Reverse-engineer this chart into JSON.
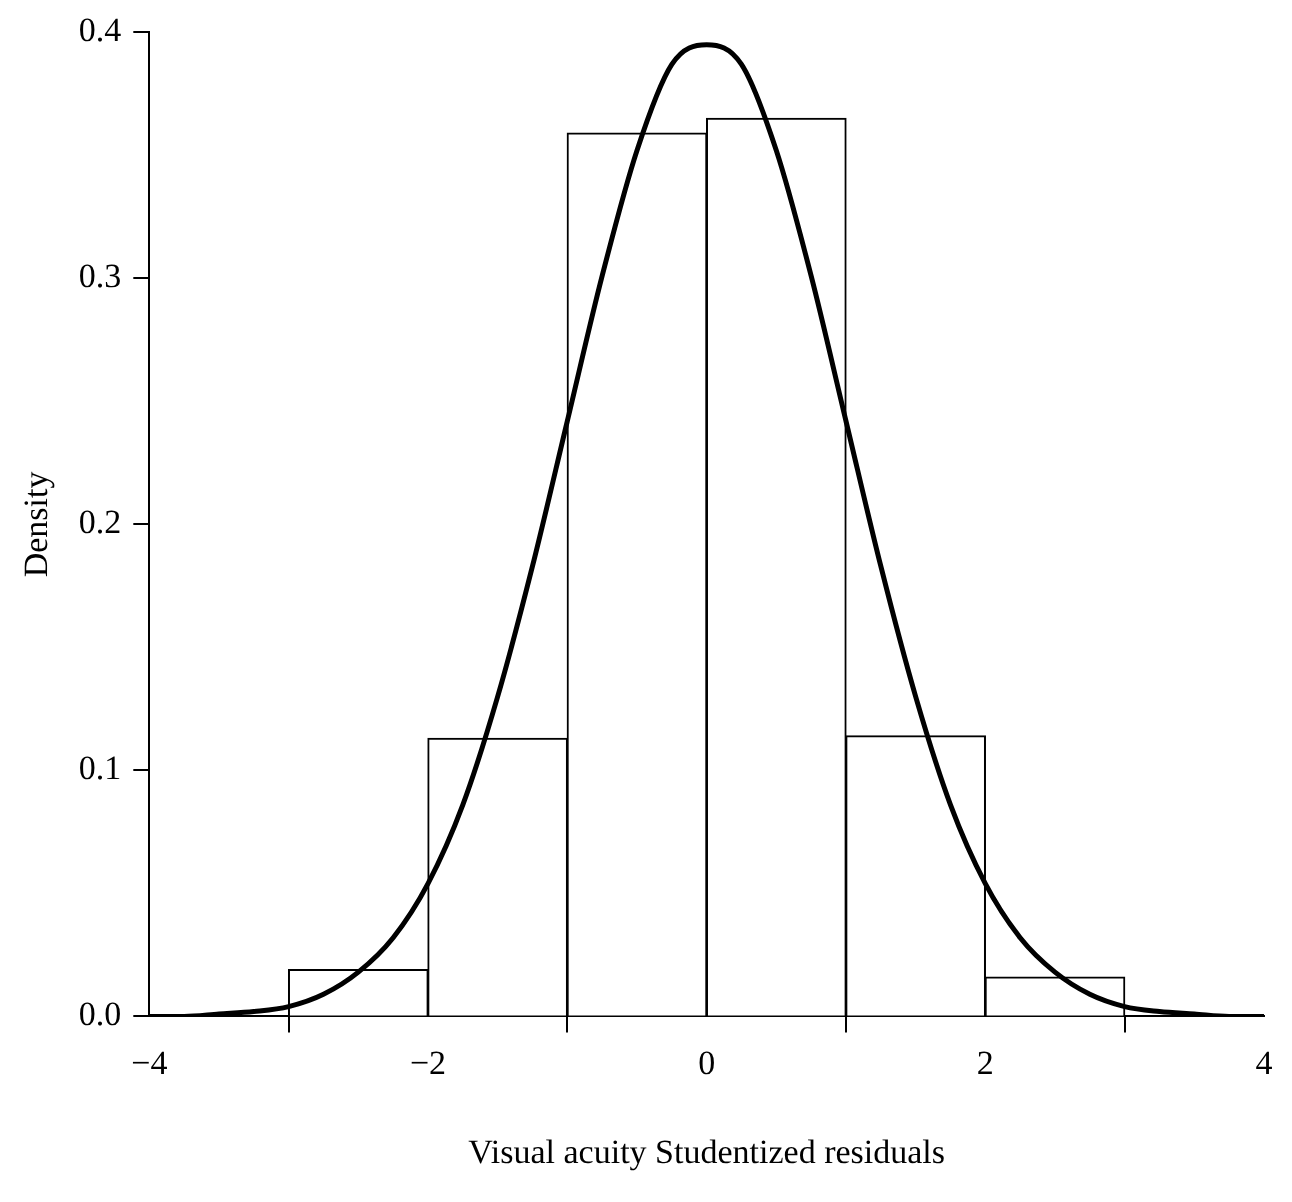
{
  "chart_data": {
    "type": "histogram",
    "xlabel": "Visual acuity Studentized residuals",
    "ylabel": "Density",
    "bins": [
      -3,
      -2,
      -1,
      0,
      1,
      2,
      3
    ],
    "series": [
      {
        "color": "#ffffff",
        "values": [
          0.019,
          0.113,
          0.359,
          0.365,
          0.114,
          0.016
        ]
      },
      {
        "type": "line",
        "color": "#000000",
        "x": [
          -4,
          -3.75,
          -3.5,
          -3.25,
          -3,
          -2.75,
          -2.5,
          -2.25,
          -2,
          -1.75,
          -1.5,
          -1.25,
          -1,
          -0.75,
          -0.5,
          -0.25,
          0,
          0.25,
          0.5,
          0.75,
          1,
          1.25,
          1.5,
          1.75,
          2,
          2.25,
          2.5,
          2.75,
          3,
          3.25,
          3.5,
          3.75,
          4
        ],
        "values": [
          0,
          0,
          0.001,
          0.002,
          0.004,
          0.009,
          0.018,
          0.032,
          0.054,
          0.086,
          0.13,
          0.183,
          0.242,
          0.301,
          0.352,
          0.387,
          0.395,
          0.387,
          0.352,
          0.301,
          0.242,
          0.183,
          0.13,
          0.086,
          0.054,
          0.032,
          0.018,
          0.009,
          0.004,
          0.002,
          0.001,
          0,
          0
        ]
      }
    ],
    "xlim": [
      -4,
      4
    ],
    "xticks": [
      {
        "value": -4,
        "label": "−4"
      },
      {
        "value": -2,
        "label": "−2"
      },
      0,
      2,
      4
    ],
    "ylim": [
      0,
      0.4
    ],
    "yticks": [
      {
        "value": 0,
        "label": "0.0"
      },
      0.1,
      0.2,
      0.3,
      0.4
    ],
    "line_style": "solid",
    "marker": "none"
  }
}
